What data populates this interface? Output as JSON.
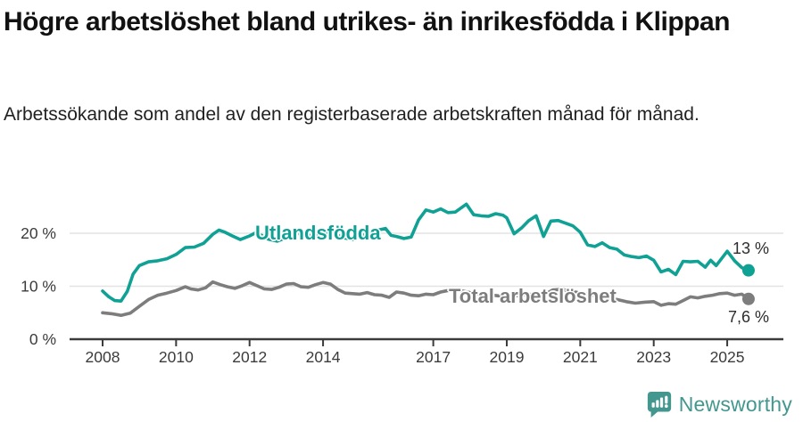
{
  "header": {
    "title": "Högre arbetslöshet bland utrikes- än inrikesfödda i Klippan",
    "subtitle": "Arbetssökande som andel av den registerbaserade arbetskraften månad för månad."
  },
  "chart_data": {
    "type": "line",
    "title": "Högre arbetslöshet bland utrikes- än inrikesfödda i Klippan",
    "xlabel": "",
    "ylabel": "",
    "ylim": [
      0,
      27
    ],
    "grid": "horizontal-light",
    "legend": "inline-labels-on-lines",
    "axis_color": "#3b3b3b",
    "gridline_color": "#e3e3e3",
    "yticks": [
      {
        "value": 0,
        "label": "0 %"
      },
      {
        "value": 10,
        "label": "10 %"
      },
      {
        "value": 20,
        "label": "20 %"
      }
    ],
    "xticks": [
      {
        "value": 2008,
        "label": "2008"
      },
      {
        "value": 2010,
        "label": "2010"
      },
      {
        "value": 2012,
        "label": "2012"
      },
      {
        "value": 2014,
        "label": "2014"
      },
      {
        "value": 2017,
        "label": "2017"
      },
      {
        "value": 2019,
        "label": "2019"
      },
      {
        "value": 2021,
        "label": "2021"
      },
      {
        "value": 2023,
        "label": "2023"
      },
      {
        "value": 2025,
        "label": "2025"
      }
    ],
    "series": [
      {
        "name": "Utlandsfödda",
        "color": "#10a195",
        "end_label": "13 %",
        "end_value": 13,
        "points": [
          [
            2008.0,
            9.1
          ],
          [
            2008.17,
            8.0
          ],
          [
            2008.33,
            7.3
          ],
          [
            2008.5,
            7.2
          ],
          [
            2008.67,
            9.0
          ],
          [
            2008.83,
            12.3
          ],
          [
            2009.0,
            13.9
          ],
          [
            2009.25,
            14.6
          ],
          [
            2009.5,
            14.8
          ],
          [
            2009.75,
            15.2
          ],
          [
            2010.0,
            16.0
          ],
          [
            2010.25,
            17.3
          ],
          [
            2010.5,
            17.4
          ],
          [
            2010.75,
            18.1
          ],
          [
            2011.0,
            19.8
          ],
          [
            2011.17,
            20.6
          ],
          [
            2011.33,
            20.2
          ],
          [
            2011.5,
            19.6
          ],
          [
            2011.75,
            18.8
          ],
          [
            2012.0,
            19.5
          ],
          [
            2012.17,
            20.1
          ],
          [
            2012.33,
            19.6
          ],
          [
            2012.5,
            18.9
          ],
          [
            2012.75,
            18.5
          ],
          [
            2013.0,
            19.2
          ],
          [
            2013.25,
            20.2
          ],
          [
            2013.5,
            19.4
          ],
          [
            2013.75,
            19.7
          ],
          [
            2014.0,
            19.3
          ],
          [
            2014.2,
            20.6
          ],
          [
            2014.4,
            19.6
          ],
          [
            2014.6,
            19.1
          ],
          [
            2014.8,
            18.8
          ],
          [
            2015.0,
            19.4
          ],
          [
            2015.25,
            20.1
          ],
          [
            2015.5,
            20.6
          ],
          [
            2015.7,
            20.9
          ],
          [
            2015.85,
            19.6
          ],
          [
            2016.0,
            19.4
          ],
          [
            2016.2,
            19.0
          ],
          [
            2016.4,
            19.3
          ],
          [
            2016.6,
            22.5
          ],
          [
            2016.8,
            24.4
          ],
          [
            2017.0,
            24.0
          ],
          [
            2017.2,
            24.6
          ],
          [
            2017.4,
            23.9
          ],
          [
            2017.6,
            24.0
          ],
          [
            2017.9,
            25.5
          ],
          [
            2018.1,
            23.5
          ],
          [
            2018.3,
            23.3
          ],
          [
            2018.5,
            23.2
          ],
          [
            2018.7,
            23.7
          ],
          [
            2018.9,
            23.4
          ],
          [
            2019.0,
            22.9
          ],
          [
            2019.2,
            19.9
          ],
          [
            2019.4,
            21.0
          ],
          [
            2019.6,
            22.4
          ],
          [
            2019.8,
            23.3
          ],
          [
            2020.0,
            19.4
          ],
          [
            2020.2,
            22.3
          ],
          [
            2020.4,
            22.4
          ],
          [
            2020.6,
            21.9
          ],
          [
            2020.8,
            21.4
          ],
          [
            2021.0,
            20.2
          ],
          [
            2021.2,
            17.8
          ],
          [
            2021.4,
            17.5
          ],
          [
            2021.6,
            18.2
          ],
          [
            2021.8,
            17.3
          ],
          [
            2022.0,
            17.0
          ],
          [
            2022.2,
            15.9
          ],
          [
            2022.4,
            15.6
          ],
          [
            2022.6,
            15.4
          ],
          [
            2022.8,
            15.7
          ],
          [
            2023.0,
            14.9
          ],
          [
            2023.2,
            12.7
          ],
          [
            2023.4,
            13.2
          ],
          [
            2023.6,
            12.2
          ],
          [
            2023.8,
            14.7
          ],
          [
            2024.0,
            14.6
          ],
          [
            2024.2,
            14.7
          ],
          [
            2024.4,
            13.6
          ],
          [
            2024.55,
            14.9
          ],
          [
            2024.7,
            13.9
          ],
          [
            2025.0,
            16.6
          ],
          [
            2025.2,
            14.8
          ],
          [
            2025.4,
            13.5
          ],
          [
            2025.58,
            13.0
          ]
        ]
      },
      {
        "name": "Total arbetslöshet",
        "color": "#7d7d7d",
        "end_label": "7,6 %",
        "end_value": 7.6,
        "points": [
          [
            2008.0,
            5.0
          ],
          [
            2008.25,
            4.8
          ],
          [
            2008.5,
            4.5
          ],
          [
            2008.75,
            4.9
          ],
          [
            2009.0,
            6.2
          ],
          [
            2009.25,
            7.5
          ],
          [
            2009.5,
            8.3
          ],
          [
            2009.75,
            8.7
          ],
          [
            2010.0,
            9.2
          ],
          [
            2010.25,
            9.9
          ],
          [
            2010.4,
            9.5
          ],
          [
            2010.6,
            9.3
          ],
          [
            2010.8,
            9.7
          ],
          [
            2011.0,
            10.8
          ],
          [
            2011.2,
            10.3
          ],
          [
            2011.4,
            9.9
          ],
          [
            2011.6,
            9.6
          ],
          [
            2011.8,
            10.1
          ],
          [
            2012.0,
            10.7
          ],
          [
            2012.2,
            10.1
          ],
          [
            2012.4,
            9.5
          ],
          [
            2012.6,
            9.4
          ],
          [
            2012.8,
            9.8
          ],
          [
            2013.0,
            10.4
          ],
          [
            2013.2,
            10.5
          ],
          [
            2013.4,
            9.9
          ],
          [
            2013.6,
            9.8
          ],
          [
            2013.8,
            10.3
          ],
          [
            2014.0,
            10.7
          ],
          [
            2014.2,
            10.4
          ],
          [
            2014.4,
            9.4
          ],
          [
            2014.6,
            8.7
          ],
          [
            2014.8,
            8.6
          ],
          [
            2015.0,
            8.5
          ],
          [
            2015.2,
            8.8
          ],
          [
            2015.4,
            8.4
          ],
          [
            2015.6,
            8.3
          ],
          [
            2015.8,
            7.9
          ],
          [
            2016.0,
            8.9
          ],
          [
            2016.2,
            8.7
          ],
          [
            2016.4,
            8.3
          ],
          [
            2016.6,
            8.2
          ],
          [
            2016.8,
            8.5
          ],
          [
            2017.0,
            8.4
          ],
          [
            2017.2,
            8.9
          ],
          [
            2017.4,
            9.2
          ],
          [
            2017.6,
            9.3
          ],
          [
            2017.8,
            9.1
          ],
          [
            2018.0,
            8.8
          ],
          [
            2018.25,
            8.5
          ],
          [
            2018.5,
            8.4
          ],
          [
            2018.75,
            8.2
          ],
          [
            2019.0,
            8.0
          ],
          [
            2019.25,
            8.2
          ],
          [
            2019.5,
            8.4
          ],
          [
            2019.75,
            8.5
          ],
          [
            2020.0,
            8.3
          ],
          [
            2020.25,
            9.3
          ],
          [
            2020.5,
            9.4
          ],
          [
            2020.75,
            9.1
          ],
          [
            2021.0,
            8.7
          ],
          [
            2021.25,
            8.4
          ],
          [
            2021.5,
            8.1
          ],
          [
            2021.75,
            7.8
          ],
          [
            2022.0,
            7.5
          ],
          [
            2022.25,
            7.1
          ],
          [
            2022.5,
            6.8
          ],
          [
            2022.75,
            7.0
          ],
          [
            2023.0,
            7.1
          ],
          [
            2023.2,
            6.4
          ],
          [
            2023.4,
            6.7
          ],
          [
            2023.6,
            6.6
          ],
          [
            2023.8,
            7.3
          ],
          [
            2024.0,
            8.0
          ],
          [
            2024.2,
            7.8
          ],
          [
            2024.4,
            8.1
          ],
          [
            2024.6,
            8.3
          ],
          [
            2024.8,
            8.6
          ],
          [
            2025.0,
            8.7
          ],
          [
            2025.2,
            8.3
          ],
          [
            2025.4,
            8.5
          ],
          [
            2025.58,
            7.6
          ]
        ]
      }
    ]
  },
  "footer": {
    "brand": "Newsworthy",
    "brand_color": "#43978f",
    "icon": "newsworthy-speech-bubble-chart-icon"
  }
}
